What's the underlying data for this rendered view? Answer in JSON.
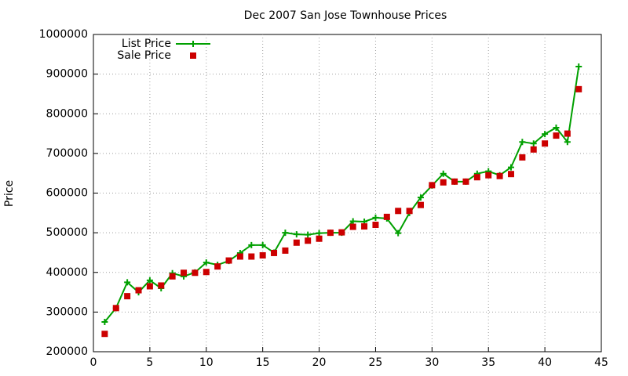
{
  "chart_data": {
    "type": "line",
    "title": "Dec 2007 San Jose Townhouse Prices",
    "y_label": "Price",
    "x": [
      1,
      2,
      3,
      4,
      5,
      6,
      7,
      8,
      9,
      10,
      11,
      12,
      13,
      14,
      15,
      16,
      17,
      18,
      19,
      20,
      21,
      22,
      23,
      24,
      25,
      26,
      27,
      28,
      29,
      30,
      31,
      32,
      33,
      34,
      35,
      36,
      37,
      38,
      39,
      40,
      41,
      42,
      43
    ],
    "series": [
      {
        "name": "List Price",
        "color": "#00a000",
        "mode": "linespoints",
        "values": [
          275000,
          310000,
          375000,
          350000,
          380000,
          360000,
          398000,
          390000,
          400000,
          425000,
          419000,
          429000,
          449000,
          469000,
          469000,
          450000,
          500000,
          496000,
          495000,
          499000,
          500000,
          500000,
          529000,
          528000,
          538000,
          536000,
          499000,
          550000,
          589000,
          619000,
          649000,
          629000,
          629000,
          649000,
          655000,
          645000,
          665000,
          729000,
          725000,
          749000,
          765000,
          729000,
          919000
        ]
      },
      {
        "name": "Sale Price",
        "color": "#cc0000",
        "mode": "points",
        "values": [
          245000,
          310000,
          340000,
          355000,
          365000,
          367000,
          390000,
          399000,
          399000,
          401000,
          415000,
          430000,
          440000,
          440000,
          443000,
          449000,
          455000,
          475000,
          480000,
          485000,
          500000,
          501000,
          515000,
          516000,
          520000,
          540000,
          555000,
          555000,
          570000,
          620000,
          627000,
          629000,
          629000,
          640000,
          645000,
          643000,
          648000,
          690000,
          710000,
          725000,
          745000,
          750000,
          862000
        ]
      }
    ],
    "xlim": [
      0,
      45
    ],
    "xticks": [
      0,
      5,
      10,
      15,
      20,
      25,
      30,
      35,
      40,
      45
    ],
    "ylim": [
      200000,
      1000000
    ],
    "yticks": [
      200000,
      300000,
      400000,
      500000,
      600000,
      700000,
      800000,
      900000,
      1000000
    ],
    "grid": true,
    "legend": "top-left"
  }
}
